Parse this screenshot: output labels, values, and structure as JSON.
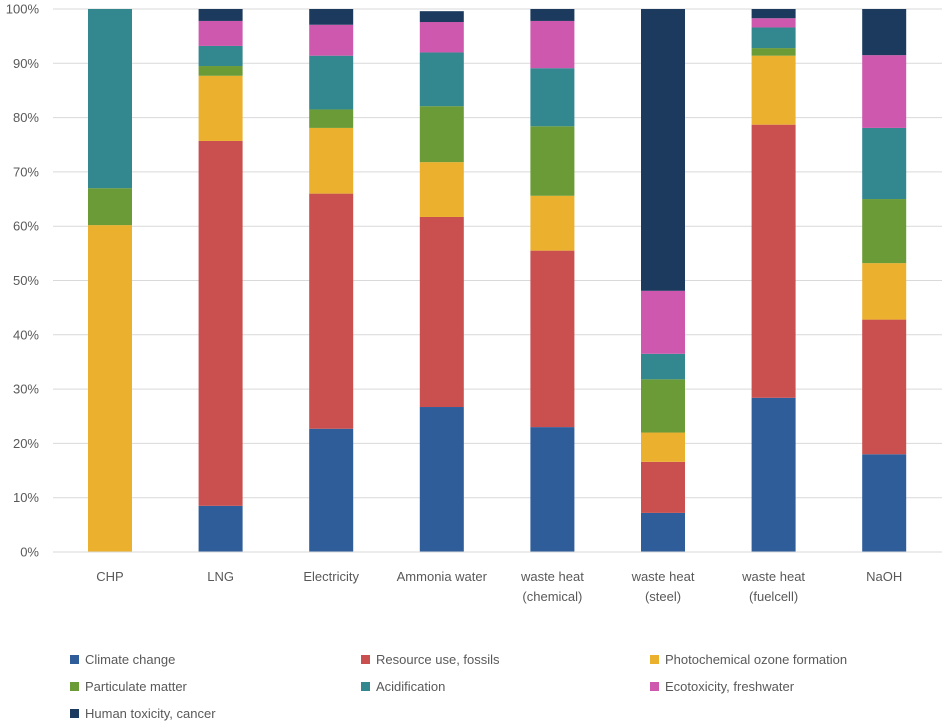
{
  "chart_data": {
    "type": "bar",
    "stacked": true,
    "normalized": true,
    "title": "",
    "xlabel": "",
    "ylabel": "",
    "ylim": [
      0,
      100
    ],
    "yticks": [
      "0%",
      "10%",
      "20%",
      "30%",
      "40%",
      "50%",
      "60%",
      "70%",
      "80%",
      "90%",
      "100%"
    ],
    "categories": [
      [
        "CHP"
      ],
      [
        "LNG"
      ],
      [
        "Electricity"
      ],
      [
        "Ammonia water"
      ],
      [
        "waste heat",
        "(chemical)"
      ],
      [
        "waste heat",
        "(steel)"
      ],
      [
        "waste heat",
        "(fuelcell)"
      ],
      [
        "NaOH"
      ]
    ],
    "legend_position": "bottom",
    "series": [
      {
        "name": "Climate change",
        "color": "#2E5D9A",
        "values": [
          0,
          8.5,
          22.7,
          26.7,
          23.0,
          7.2,
          28.4,
          18.0
        ]
      },
      {
        "name": "Resource use, fossils",
        "color": "#C9504F",
        "values": [
          0,
          67.2,
          43.3,
          35.0,
          32.5,
          9.4,
          50.3,
          24.8
        ]
      },
      {
        "name": "Photochemical ozone formation",
        "color": "#EBB02E",
        "values": [
          60.2,
          12.0,
          12.1,
          10.1,
          10.1,
          5.4,
          12.7,
          10.4
        ]
      },
      {
        "name": "Particulate matter",
        "color": "#6B9B37",
        "values": [
          6.8,
          1.8,
          3.4,
          10.3,
          12.8,
          9.8,
          1.4,
          11.8
        ]
      },
      {
        "name": "Acidification",
        "color": "#33878F",
        "values": [
          33.0,
          3.7,
          9.9,
          9.9,
          10.7,
          4.7,
          3.8,
          13.1
        ]
      },
      {
        "name": "Ecotoxicity, freshwater",
        "color": "#CD58AD",
        "values": [
          0,
          4.6,
          5.7,
          5.6,
          8.7,
          11.6,
          1.7,
          13.4
        ]
      },
      {
        "name": "Human toxicity, cancer",
        "color": "#1C3A5E",
        "values": [
          0,
          2.2,
          2.9,
          2.0,
          2.2,
          51.9,
          1.7,
          8.5
        ]
      }
    ]
  }
}
